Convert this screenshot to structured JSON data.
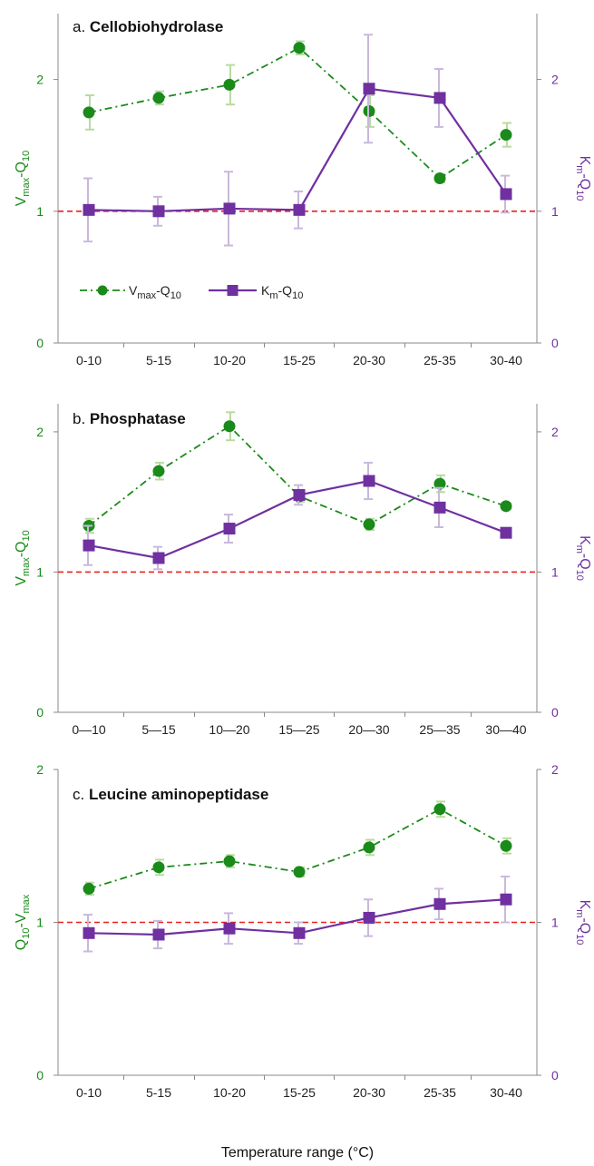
{
  "colors": {
    "vmax": "#1a8a1a",
    "vmax_err": "#b8dba0",
    "km": "#7030a0",
    "km_err": "#c9b8dc",
    "ref": "#e8221c",
    "axis": "#888888"
  },
  "legend": {
    "vmax": [
      "V",
      "max",
      "-Q",
      "10"
    ],
    "km": [
      "K",
      "m",
      "-Q",
      "10"
    ]
  },
  "x_title": "Temperature range (°C)",
  "chart_data": [
    {
      "type": "line",
      "letter": "a.",
      "title": "Cellobiohydrolase",
      "categories": [
        "0-10",
        "5-15",
        "10-20",
        "15-25",
        "20-30",
        "25-35",
        "30-40"
      ],
      "ylabel_left": [
        "V",
        "max",
        "-Q",
        "10"
      ],
      "ylabel_right": [
        "K",
        "m",
        "-Q",
        "10"
      ],
      "ylim": [
        0,
        2.5
      ],
      "yticks": [
        0,
        1,
        2
      ],
      "reference_line": 1,
      "legend_visible": true,
      "legend_position": "lower-left",
      "series": [
        {
          "key": "vmax",
          "values": [
            1.75,
            1.86,
            1.96,
            2.24,
            1.76,
            1.25,
            1.58
          ],
          "errors": [
            0.13,
            0.05,
            0.15,
            0.05,
            0.12,
            0.03,
            0.09
          ]
        },
        {
          "key": "km",
          "values": [
            1.01,
            1.0,
            1.02,
            1.01,
            1.93,
            1.86,
            1.13
          ],
          "errors": [
            0.24,
            0.11,
            0.28,
            0.14,
            0.41,
            0.22,
            0.14
          ]
        }
      ]
    },
    {
      "type": "line",
      "letter": "b.",
      "title": "Phosphatase",
      "categories": [
        "0—10",
        "5—15",
        "10—20",
        "15—25",
        "20—30",
        "25—35",
        "30—40"
      ],
      "ylabel_left": [
        "V",
        "max",
        "-Q",
        "10"
      ],
      "ylabel_right": [
        "K",
        "m",
        "-Q",
        "10"
      ],
      "ylim": [
        0,
        2.2
      ],
      "yticks": [
        0,
        1,
        2
      ],
      "reference_line": 1,
      "legend_visible": false,
      "series": [
        {
          "key": "vmax",
          "values": [
            1.33,
            1.72,
            2.04,
            1.54,
            1.34,
            1.63,
            1.47
          ],
          "errors": [
            0.05,
            0.06,
            0.1,
            0.04,
            0.04,
            0.06,
            0.02
          ]
        },
        {
          "key": "km",
          "values": [
            1.19,
            1.1,
            1.31,
            1.55,
            1.65,
            1.46,
            1.28
          ],
          "errors": [
            0.14,
            0.08,
            0.1,
            0.07,
            0.13,
            0.14,
            0.02
          ]
        }
      ]
    },
    {
      "type": "line",
      "letter": "c.",
      "title": "Leucine aminopeptidase",
      "categories": [
        "0-10",
        "5-15",
        "10-20",
        "15-25",
        "20-30",
        "25-35",
        "30-40"
      ],
      "ylabel_left": [
        "Q",
        "10",
        "-V",
        "max"
      ],
      "ylabel_right": [
        "K",
        "m",
        "-Q",
        "10"
      ],
      "ylim": [
        0,
        2
      ],
      "yticks": [
        0,
        1,
        2
      ],
      "reference_line": 1,
      "legend_visible": false,
      "series": [
        {
          "key": "vmax",
          "values": [
            1.22,
            1.36,
            1.4,
            1.33,
            1.49,
            1.74,
            1.5
          ],
          "errors": [
            0.04,
            0.05,
            0.04,
            0.03,
            0.05,
            0.05,
            0.05
          ]
        },
        {
          "key": "km",
          "values": [
            0.93,
            0.92,
            0.96,
            0.93,
            1.03,
            1.12,
            1.15
          ],
          "errors": [
            0.12,
            0.09,
            0.1,
            0.07,
            0.12,
            0.1,
            0.15
          ]
        }
      ]
    }
  ]
}
